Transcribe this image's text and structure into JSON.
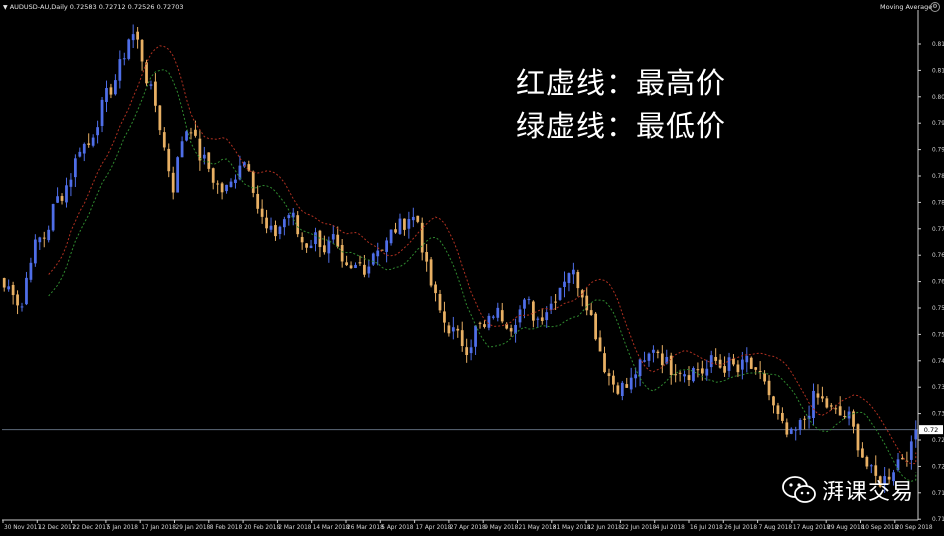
{
  "header": {
    "symbol_info": "AUDUSD-AU,Daily  0.72583 0.72712 0.72526 0.72703",
    "indicator": "Moving Average"
  },
  "annotations": {
    "line1": "红虚线：最高价",
    "line2": "绿虚线：最低价"
  },
  "watermark": {
    "text": "湃课交易",
    "icon": "wechat-icon"
  },
  "colors": {
    "background": "#000000",
    "bull": "#4f6ee8",
    "bear": "#e8b064",
    "ma_high": "#b03020",
    "ma_low": "#2f8a2f",
    "price_line": "#5d6a7a",
    "axis": "#cccccc",
    "text": "#d8d8d8"
  },
  "chart_data": {
    "type": "candlestick",
    "series_name": "AUDUSD-AU,Daily",
    "last_price": 0.72703,
    "last_price_label": "0.72",
    "x_tick_labels": [
      "30 Nov 2017",
      "12 Dec 2017",
      "22 Dec 2017",
      "5 Jan 2018",
      "17 Jan 2018",
      "29 Jan 2018",
      "8 Feb 2018",
      "20 Feb 2018",
      "2 Mar 2018",
      "14 Mar 2018",
      "26 Mar 2018",
      "5 Apr 2018",
      "17 Apr 2018",
      "27 Apr 2018",
      "9 May 2018",
      "21 May 2018",
      "31 May 2018",
      "12 Jun 2018",
      "22 Jun 2018",
      "4 Jul 2018",
      "16 Jul 2018",
      "26 Jul 2018",
      "7 Aug 2018",
      "17 Aug 2018",
      "29 Aug 2018",
      "10 Sep 2018",
      "20 Sep 2018"
    ],
    "y_tick_labels": [
      "0.81",
      "0.81",
      "0.80",
      "0.79",
      "0.79",
      "0.78",
      "0.78",
      "0.77",
      "0.76",
      "0.76",
      "0.75",
      "0.75",
      "0.74",
      "0.73",
      "0.73",
      "0.72",
      "0.72",
      "0.71",
      "0.71"
    ],
    "ylim": [
      0.708,
      0.815
    ],
    "anchors": [
      0.757,
      0.757,
      0.752,
      0.763,
      0.767,
      0.768,
      0.775,
      0.777,
      0.781,
      0.787,
      0.787,
      0.792,
      0.797,
      0.8,
      0.805,
      0.811,
      0.808,
      0.8,
      0.795,
      0.786,
      0.778,
      0.788,
      0.792,
      0.785,
      0.783,
      0.779,
      0.777,
      0.779,
      0.784,
      0.783,
      0.774,
      0.769,
      0.768,
      0.771,
      0.773,
      0.767,
      0.766,
      0.768,
      0.765,
      0.767,
      0.761,
      0.76,
      0.762,
      0.761,
      0.766,
      0.765,
      0.769,
      0.77,
      0.772,
      0.771,
      0.761,
      0.755,
      0.75,
      0.748,
      0.746,
      0.744,
      0.749,
      0.748,
      0.752,
      0.751,
      0.749,
      0.752,
      0.754,
      0.75,
      0.752,
      0.754,
      0.758,
      0.761,
      0.758,
      0.754,
      0.748,
      0.741,
      0.737,
      0.736,
      0.736,
      0.74,
      0.741,
      0.745,
      0.742,
      0.74,
      0.74,
      0.739,
      0.74,
      0.739,
      0.742,
      0.74,
      0.741,
      0.739,
      0.742,
      0.738,
      0.738,
      0.732,
      0.728,
      0.725,
      0.727,
      0.73,
      0.734,
      0.733,
      0.731,
      0.73,
      0.73,
      0.725,
      0.72,
      0.717,
      0.716,
      0.718,
      0.721,
      0.722,
      0.724
    ]
  }
}
